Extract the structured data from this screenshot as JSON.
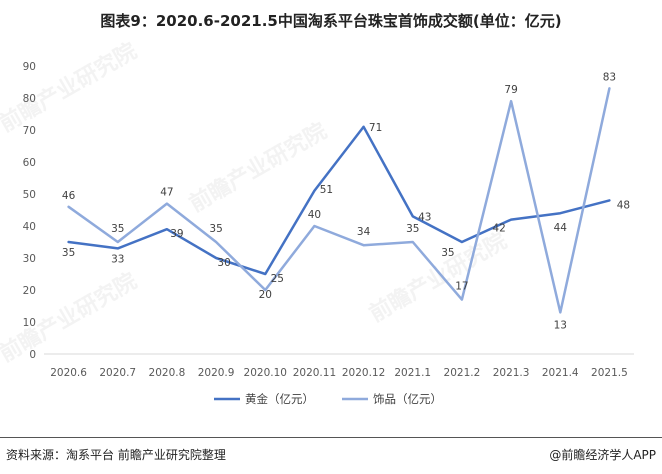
{
  "title": "图表9：2020.6-2021.5中国淘系平台珠宝首饰成交额(单位：亿元)",
  "footer": {
    "source": "资料来源：淘系平台 前瞻产业研究院整理",
    "credit": "@前瞻经济学人APP"
  },
  "watermarks": [
    "前瞻产业研究院",
    "前瞻产业研究院",
    "前瞻产业研究院",
    "前瞻产业研究院"
  ],
  "chart_data": {
    "type": "line",
    "title": "图表9：2020.6-2021.5中国淘系平台珠宝首饰成交额(单位：亿元)",
    "categories": [
      "2020.6",
      "2020.7",
      "2020.8",
      "2020.9",
      "2020.10",
      "2020.11",
      "2020.12",
      "2021.1",
      "2021.2",
      "2021.3",
      "2021.4",
      "2021.5"
    ],
    "y_ticks": [
      "0",
      "10",
      "20",
      "30",
      "40",
      "50",
      "60",
      "70",
      "80",
      "90"
    ],
    "ylim": [
      0,
      90
    ],
    "grid": false,
    "legend_position": "bottom",
    "series": [
      {
        "name": "黄金（亿元）",
        "color": "#4472c4",
        "values": [
          35,
          33,
          39,
          30,
          25,
          51,
          71,
          43,
          35,
          42,
          44,
          48
        ]
      },
      {
        "name": "饰品（亿元）",
        "color": "#8faadc",
        "values": [
          46,
          35,
          47,
          35,
          20,
          40,
          34,
          35,
          17,
          79,
          13,
          83
        ]
      }
    ]
  }
}
